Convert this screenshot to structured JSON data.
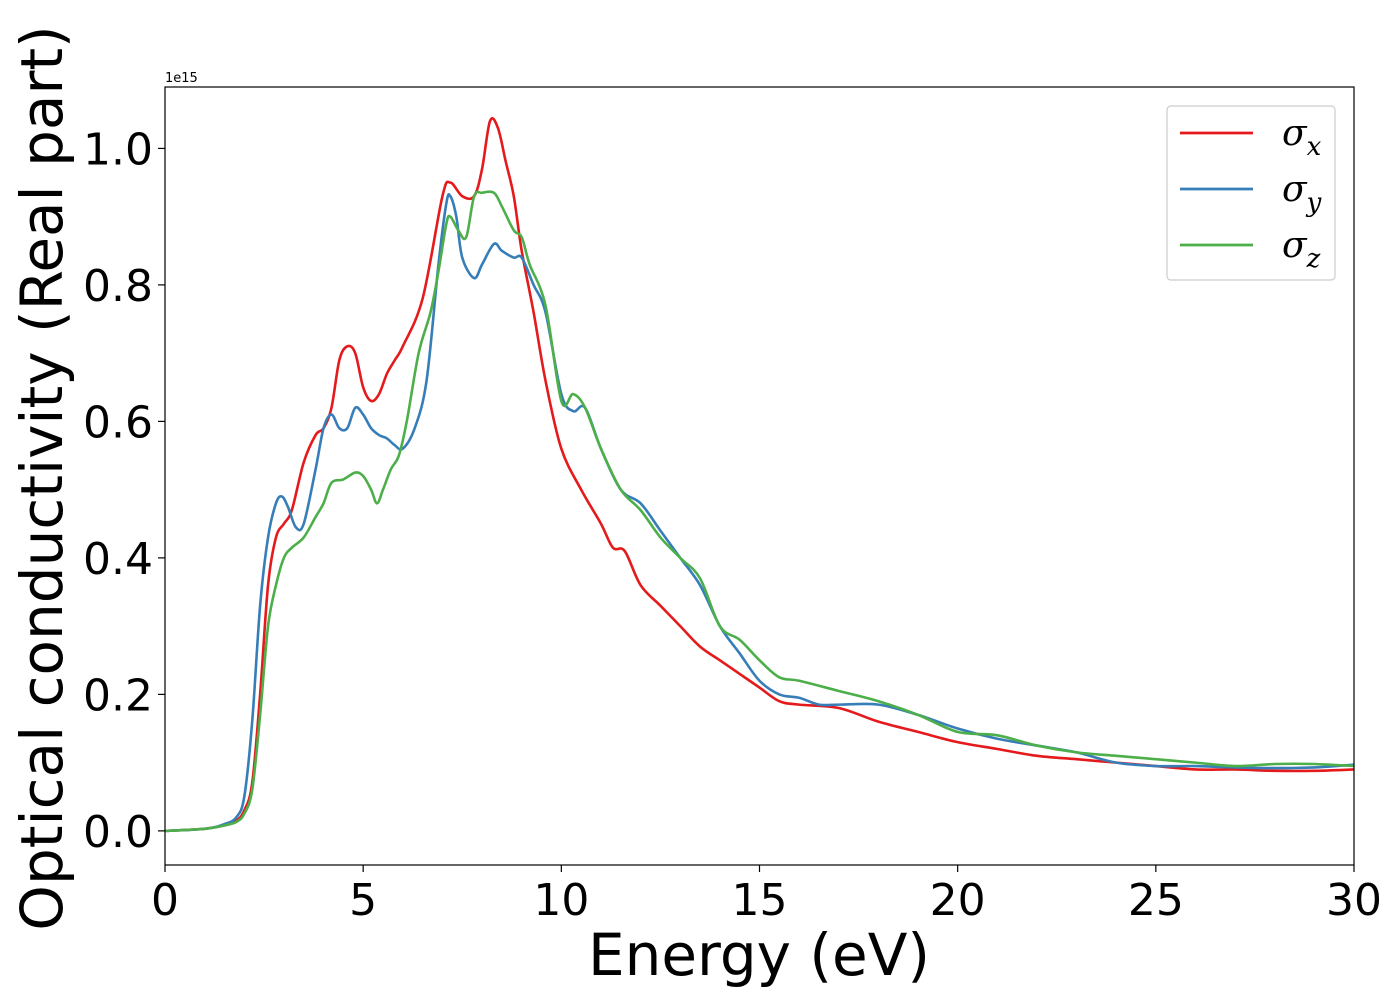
{
  "chart_data": {
    "type": "line",
    "xlabel": "Energy (eV)",
    "ylabel": "Optical conductivity (Real part)",
    "y_offset_label": "1e15",
    "xlim": [
      0,
      30
    ],
    "ylim": [
      -0.05,
      1.09
    ],
    "x_ticks": [
      0,
      5,
      10,
      15,
      20,
      25,
      30
    ],
    "x_tick_labels": [
      "0",
      "5",
      "10",
      "15",
      "20",
      "25",
      "30"
    ],
    "y_ticks": [
      0.0,
      0.2,
      0.4,
      0.6,
      0.8,
      1.0
    ],
    "y_tick_labels": [
      "0.0",
      "0.2",
      "0.4",
      "0.6",
      "0.8",
      "1.0"
    ],
    "grid": false,
    "legend_position": "top-right",
    "series": [
      {
        "name": "σx",
        "legend_base": "σ",
        "legend_sub": "x",
        "color": "#e41a1c",
        "x": [
          0,
          1,
          1.5,
          1.8,
          2.0,
          2.2,
          2.4,
          2.6,
          2.8,
          3.0,
          3.2,
          3.5,
          3.8,
          4.0,
          4.2,
          4.4,
          4.6,
          4.8,
          5.0,
          5.2,
          5.4,
          5.6,
          5.8,
          6.0,
          6.5,
          7.0,
          7.2,
          7.5,
          7.8,
          8.0,
          8.2,
          8.4,
          8.6,
          8.8,
          9.0,
          9.3,
          9.6,
          10.0,
          10.5,
          11.0,
          11.3,
          11.6,
          12.0,
          12.5,
          13.0,
          13.5,
          14.0,
          14.5,
          15.0,
          15.5,
          16.0,
          17.0,
          18.0,
          19.0,
          20.0,
          21.0,
          22.0,
          23.0,
          24.0,
          25.0,
          26.0,
          27.0,
          28.0,
          29.0,
          30.0
        ],
        "y": [
          0,
          0.003,
          0.008,
          0.015,
          0.03,
          0.07,
          0.2,
          0.36,
          0.43,
          0.45,
          0.47,
          0.54,
          0.58,
          0.59,
          0.62,
          0.69,
          0.71,
          0.7,
          0.65,
          0.63,
          0.64,
          0.67,
          0.69,
          0.71,
          0.78,
          0.93,
          0.95,
          0.93,
          0.93,
          0.97,
          1.04,
          1.03,
          0.98,
          0.93,
          0.85,
          0.76,
          0.66,
          0.56,
          0.5,
          0.45,
          0.415,
          0.41,
          0.36,
          0.33,
          0.3,
          0.27,
          0.25,
          0.23,
          0.21,
          0.19,
          0.185,
          0.18,
          0.16,
          0.145,
          0.13,
          0.12,
          0.11,
          0.105,
          0.1,
          0.095,
          0.09,
          0.09,
          0.088,
          0.088,
          0.09
        ]
      },
      {
        "name": "σy",
        "legend_base": "σ",
        "legend_sub": "y",
        "color": "#377eb8",
        "x": [
          0,
          1,
          1.5,
          1.8,
          2.0,
          2.2,
          2.4,
          2.6,
          2.8,
          2.95,
          3.1,
          3.3,
          3.5,
          3.8,
          4.0,
          4.2,
          4.4,
          4.6,
          4.8,
          5.0,
          5.2,
          5.4,
          5.6,
          5.8,
          6.0,
          6.3,
          6.6,
          6.9,
          7.1,
          7.2,
          7.35,
          7.5,
          7.8,
          8.0,
          8.3,
          8.5,
          8.8,
          9.0,
          9.3,
          9.6,
          10.0,
          10.3,
          10.6,
          11.0,
          11.5,
          12.0,
          12.5,
          13.0,
          13.5,
          14.0,
          14.5,
          15.0,
          15.5,
          16.0,
          16.5,
          17.0,
          18.0,
          19.0,
          20.0,
          21.0,
          22.0,
          23.0,
          24.0,
          25.0,
          26.0,
          27.0,
          28.0,
          29.0,
          30.0
        ],
        "y": [
          0,
          0.003,
          0.01,
          0.02,
          0.05,
          0.16,
          0.33,
          0.43,
          0.48,
          0.49,
          0.475,
          0.445,
          0.45,
          0.53,
          0.59,
          0.61,
          0.59,
          0.59,
          0.62,
          0.61,
          0.59,
          0.58,
          0.575,
          0.565,
          0.56,
          0.59,
          0.66,
          0.83,
          0.92,
          0.93,
          0.9,
          0.84,
          0.81,
          0.83,
          0.86,
          0.85,
          0.84,
          0.84,
          0.8,
          0.76,
          0.64,
          0.615,
          0.62,
          0.56,
          0.5,
          0.48,
          0.44,
          0.4,
          0.36,
          0.3,
          0.26,
          0.22,
          0.2,
          0.195,
          0.185,
          0.185,
          0.185,
          0.17,
          0.15,
          0.135,
          0.125,
          0.115,
          0.1,
          0.095,
          0.095,
          0.093,
          0.092,
          0.093,
          0.097
        ]
      },
      {
        "name": "σz",
        "legend_base": "σ",
        "legend_sub": "z",
        "color": "#4daf4a",
        "x": [
          0,
          1,
          1.5,
          1.8,
          2.0,
          2.2,
          2.4,
          2.6,
          2.8,
          3.0,
          3.2,
          3.5,
          3.8,
          4.0,
          4.2,
          4.5,
          4.8,
          5.0,
          5.2,
          5.35,
          5.5,
          5.7,
          5.9,
          6.1,
          6.4,
          6.7,
          6.9,
          7.1,
          7.2,
          7.4,
          7.6,
          7.8,
          8.0,
          8.3,
          8.5,
          8.8,
          9.0,
          9.2,
          9.6,
          10.0,
          10.3,
          10.6,
          11.0,
          11.5,
          12.0,
          12.5,
          13.0,
          13.5,
          14.0,
          14.5,
          15.0,
          15.5,
          16.0,
          17.0,
          18.0,
          19.0,
          20.0,
          21.0,
          22.0,
          23.0,
          24.0,
          25.0,
          26.0,
          27.0,
          28.0,
          29.0,
          30.0
        ],
        "y": [
          0,
          0.003,
          0.008,
          0.013,
          0.025,
          0.06,
          0.17,
          0.3,
          0.36,
          0.4,
          0.415,
          0.43,
          0.46,
          0.48,
          0.51,
          0.515,
          0.525,
          0.52,
          0.5,
          0.48,
          0.5,
          0.53,
          0.55,
          0.6,
          0.7,
          0.76,
          0.82,
          0.89,
          0.9,
          0.88,
          0.87,
          0.93,
          0.935,
          0.935,
          0.915,
          0.88,
          0.87,
          0.83,
          0.77,
          0.63,
          0.64,
          0.62,
          0.56,
          0.5,
          0.47,
          0.43,
          0.4,
          0.37,
          0.3,
          0.28,
          0.25,
          0.225,
          0.22,
          0.205,
          0.19,
          0.17,
          0.145,
          0.14,
          0.125,
          0.115,
          0.11,
          0.105,
          0.1,
          0.095,
          0.098,
          0.098,
          0.095
        ]
      }
    ]
  }
}
